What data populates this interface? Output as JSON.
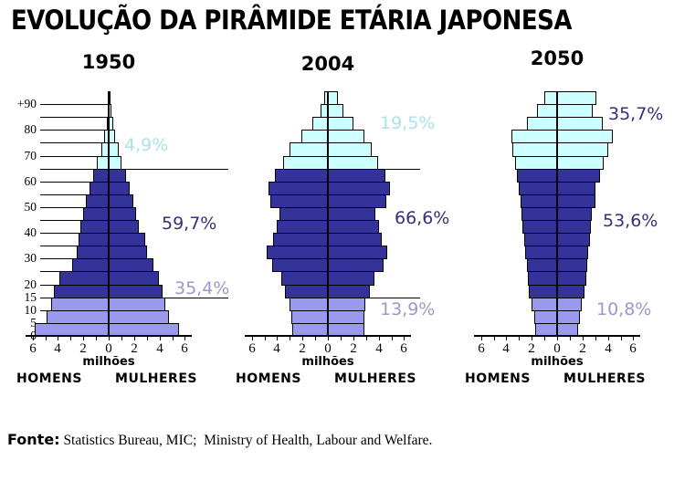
{
  "title": "EVOLUÇÃO DA PIRÂMIDE ETÁRIA JAPONESA",
  "footer": {
    "label": "Fonte:",
    "text": " Statistics Bureau, MIC;  Ministry of Health, Labour and Welfare."
  },
  "axis": {
    "unit_label": "milhões",
    "left_label": "HOMENS",
    "right_label": "MULHERES",
    "tick_labels": [
      "6",
      "4",
      "2",
      "0",
      "2",
      "4",
      "6"
    ],
    "age_axis": [
      {
        "label": "0",
        "boundary": 0
      },
      {
        "label": "5",
        "boundary": 1
      },
      {
        "label": "10",
        "boundary": 2
      },
      {
        "label": "15",
        "boundary": 3
      },
      {
        "label": "20",
        "boundary": 4
      },
      {
        "label": "30",
        "boundary": 6
      },
      {
        "label": "40",
        "boundary": 8
      },
      {
        "label": "50",
        "boundary": 10
      },
      {
        "label": "60",
        "boundary": 12
      },
      {
        "label": "70",
        "boundary": 14
      },
      {
        "label": "80",
        "boundary": 16
      },
      {
        "label": "+90",
        "boundary": 18
      }
    ]
  },
  "colors": {
    "young_bar": "#9999EE",
    "working_bar": "#333399",
    "elderly_bar": "#CCFFFF",
    "young_text": "#9999CC",
    "working_text": "#333377",
    "elderly_text": "#A9E3EA",
    "outline": "#000000"
  },
  "chart_data": {
    "type": "population-pyramid",
    "unit": "millions",
    "xlabel": "milhões",
    "x_range_per_side": [
      0,
      6
    ],
    "age_groups": [
      "0-4",
      "5-9",
      "10-14",
      "15-19",
      "20-24",
      "25-29",
      "30-34",
      "35-39",
      "40-44",
      "45-49",
      "50-54",
      "55-59",
      "60-64",
      "65-69",
      "70-74",
      "75-79",
      "80-84",
      "85-89",
      "90+"
    ],
    "bands": {
      "young": {
        "ages": "0-14",
        "group_indices": [
          0,
          2
        ]
      },
      "working": {
        "ages": "15-64",
        "group_indices": [
          3,
          12
        ]
      },
      "elderly": {
        "ages": "65+",
        "group_indices": [
          13,
          18
        ]
      }
    },
    "pyramids": [
      {
        "year": "1950",
        "men": [
          5.8,
          4.9,
          4.5,
          4.3,
          3.9,
          2.9,
          2.5,
          2.4,
          2.2,
          2.0,
          1.8,
          1.5,
          1.2,
          0.9,
          0.6,
          0.35,
          0.15,
          0.07,
          0.03
        ],
        "women": [
          5.5,
          4.7,
          4.4,
          4.2,
          3.9,
          3.4,
          3.0,
          2.8,
          2.3,
          2.1,
          1.9,
          1.6,
          1.3,
          1.0,
          0.7,
          0.45,
          0.25,
          0.12,
          0.05
        ],
        "percentages": {
          "elderly": {
            "text": "4,9%",
            "color": "#A9E3EA"
          },
          "working": {
            "text": "59,7%",
            "color": "#333377"
          },
          "young": {
            "text": "35,4%",
            "color": "#9999CC"
          }
        }
      },
      {
        "year": "2004",
        "men": [
          2.8,
          2.9,
          3.0,
          3.4,
          3.7,
          4.4,
          4.8,
          4.3,
          4.0,
          3.8,
          4.5,
          4.7,
          4.2,
          3.5,
          3.0,
          2.1,
          1.2,
          0.6,
          0.3
        ],
        "women": [
          2.8,
          2.8,
          2.9,
          3.2,
          3.6,
          4.3,
          4.6,
          4.2,
          4.0,
          3.7,
          4.6,
          4.8,
          4.4,
          3.9,
          3.4,
          2.8,
          2.0,
          1.1,
          0.7
        ],
        "percentages": {
          "elderly": {
            "text": "19,5%",
            "color": "#A9E3EA"
          },
          "working": {
            "text": "66,6%",
            "color": "#333377"
          },
          "young": {
            "text": "13,9%",
            "color": "#9999CC"
          }
        }
      },
      {
        "year": "2050",
        "men": [
          1.7,
          1.8,
          2.0,
          2.2,
          2.3,
          2.4,
          2.5,
          2.6,
          2.7,
          2.8,
          2.9,
          3.0,
          3.2,
          3.3,
          3.5,
          3.6,
          2.4,
          1.6,
          1.0
        ],
        "women": [
          1.6,
          1.7,
          1.9,
          2.1,
          2.2,
          2.3,
          2.4,
          2.5,
          2.6,
          2.7,
          2.9,
          3.0,
          3.3,
          3.6,
          4.0,
          4.3,
          3.5,
          2.7,
          3.0
        ],
        "percentages": {
          "elderly": {
            "text": "35,7%",
            "color": "#333377"
          },
          "working": {
            "text": "53,6%",
            "color": "#333377"
          },
          "young": {
            "text": "10,8%",
            "color": "#9999CC"
          }
        }
      }
    ]
  }
}
